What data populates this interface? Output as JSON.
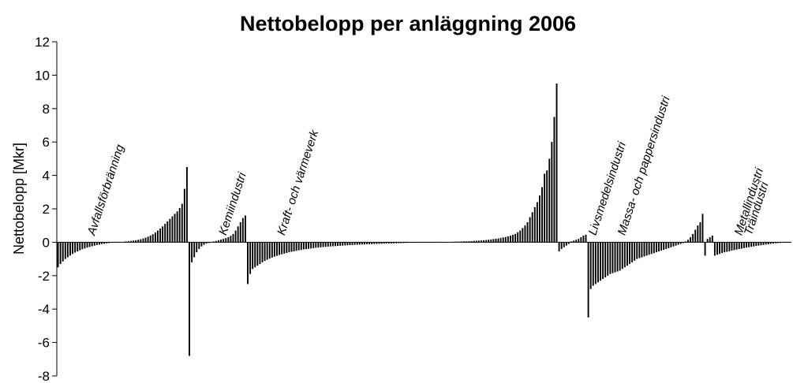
{
  "chart_data": {
    "type": "bar",
    "title": "Nettobelopp per anläggning 2006",
    "xlabel": "",
    "ylabel": "Nettobelopp [Mkr]",
    "ylim": [
      -8,
      12
    ],
    "yticks": [
      12,
      10,
      8,
      6,
      4,
      2,
      0,
      -2,
      -4,
      -6,
      -8
    ],
    "grid": false,
    "legend": "none",
    "bar_color": "#000000",
    "series": [
      {
        "category": "Avfallsförbränning",
        "values": [
          -1.5,
          -1.3,
          -1.15,
          -1.0,
          -0.9,
          -0.8,
          -0.7,
          -0.62,
          -0.55,
          -0.48,
          -0.42,
          -0.37,
          -0.32,
          -0.28,
          -0.24,
          -0.2,
          -0.17,
          -0.14,
          -0.11,
          -0.09,
          -0.07,
          -0.05,
          -0.03,
          -0.02,
          -0.01,
          0.01,
          0.02,
          0.03,
          0.05,
          0.06,
          0.08,
          0.1,
          0.12,
          0.15,
          0.18,
          0.22,
          0.27,
          0.33,
          0.4,
          0.48,
          0.58,
          0.7,
          0.82,
          0.95,
          1.1,
          1.25,
          1.4,
          1.55,
          1.7,
          1.85,
          2.05,
          2.3,
          3.2,
          4.5
        ]
      },
      {
        "category": "Kemiindustri",
        "values": [
          -6.8,
          -1.2,
          -0.9,
          -0.6,
          -0.4,
          -0.25,
          -0.15,
          -0.08,
          -0.04,
          0.02,
          0.05,
          0.08,
          0.12,
          0.16,
          0.2,
          0.25,
          0.3,
          0.38,
          0.5,
          0.7,
          0.95,
          1.2,
          1.45,
          1.6
        ]
      },
      {
        "category": "Kraft- och värmeverk",
        "values": [
          -2.5,
          -1.9,
          -1.6,
          -1.5,
          -1.4,
          -1.3,
          -1.2,
          -1.12,
          -1.05,
          -0.98,
          -0.92,
          -0.86,
          -0.81,
          -0.76,
          -0.72,
          -0.68,
          -0.64,
          -0.6,
          -0.57,
          -0.54,
          -0.51,
          -0.48,
          -0.46,
          -0.43,
          -0.41,
          -0.39,
          -0.37,
          -0.35,
          -0.33,
          -0.32,
          -0.3,
          -0.29,
          -0.27,
          -0.26,
          -0.25,
          -0.24,
          -0.23,
          -0.22,
          -0.21,
          -0.2,
          -0.19,
          -0.18,
          -0.17,
          -0.16,
          -0.155,
          -0.15,
          -0.14,
          -0.135,
          -0.13,
          -0.12,
          -0.115,
          -0.11,
          -0.105,
          -0.1,
          -0.095,
          -0.09,
          -0.085,
          -0.08,
          -0.075,
          -0.07,
          -0.065,
          -0.06,
          -0.055,
          -0.05,
          -0.045,
          -0.04,
          -0.035,
          -0.03,
          -0.025,
          -0.02,
          -0.015,
          -0.01,
          -0.008,
          -0.006,
          -0.004,
          -0.002,
          0.002,
          0.004,
          0.006,
          0.008,
          0.01,
          0.013,
          0.016,
          0.02,
          0.025,
          0.03,
          0.035,
          0.04,
          0.045,
          0.05,
          0.055,
          0.06,
          0.07,
          0.08,
          0.09,
          0.1,
          0.11,
          0.12,
          0.13,
          0.15,
          0.17,
          0.19,
          0.21,
          0.23,
          0.26,
          0.29,
          0.32,
          0.35,
          0.4,
          0.45,
          0.5,
          0.6,
          0.7,
          0.85,
          1.0,
          1.2,
          1.5,
          1.8,
          2.1,
          2.4,
          2.8,
          3.3,
          4.1,
          4.3,
          5.0,
          6.0,
          7.5,
          9.5
        ]
      },
      {
        "category": "Livsmedelsindustri",
        "values": [
          -0.55,
          -0.4,
          -0.3,
          -0.2,
          -0.1,
          0.05,
          0.1,
          0.15,
          0.2,
          0.3,
          0.4,
          0.45
        ]
      },
      {
        "category": "Massa- och pappersindustri",
        "values": [
          -4.5,
          -2.8,
          -2.6,
          -2.5,
          -2.4,
          -2.3,
          -2.2,
          -2.1,
          -2.0,
          -1.9,
          -1.85,
          -1.8,
          -1.75,
          -1.7,
          -1.6,
          -1.5,
          -1.4,
          -1.3,
          -1.2,
          -1.1,
          -1.0,
          -0.95,
          -0.9,
          -0.85,
          -0.8,
          -0.75,
          -0.7,
          -0.65,
          -0.6,
          -0.55,
          -0.5,
          -0.45,
          -0.4,
          -0.35,
          -0.3,
          -0.25,
          -0.2,
          -0.15,
          -0.1,
          -0.05,
          0.05,
          0.15,
          0.3,
          0.5,
          0.75,
          1.0,
          1.2,
          1.7
        ]
      },
      {
        "category": "Metallindustri",
        "values": [
          -0.8,
          0.2,
          0.3,
          0.4
        ]
      },
      {
        "category": "Träindustri",
        "values": [
          -0.8,
          -0.75,
          -0.7,
          -0.65,
          -0.6,
          -0.57,
          -0.54,
          -0.5,
          -0.47,
          -0.44,
          -0.41,
          -0.38,
          -0.35,
          -0.32,
          -0.3,
          -0.27,
          -0.25,
          -0.22,
          -0.2,
          -0.18,
          -0.16,
          -0.14,
          -0.12,
          -0.1,
          -0.08,
          -0.06,
          -0.05,
          -0.04,
          -0.03,
          -0.02,
          -0.01,
          0.01
        ]
      }
    ]
  }
}
